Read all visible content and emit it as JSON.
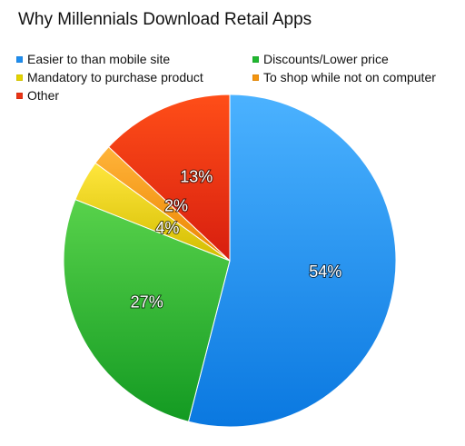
{
  "chart_data": {
    "type": "pie",
    "title": "Why Millennials Download Retail Apps",
    "legend_placement": "top",
    "slices": [
      {
        "label": "Easier to than mobile site",
        "value": 54,
        "display": "54%",
        "color": "#1e8ef0"
      },
      {
        "label": "Discounts/Lower price",
        "value": 27,
        "display": "27%",
        "color": "#20b830"
      },
      {
        "label": "Mandatory to purchase product",
        "value": 4,
        "display": "4%",
        "color": "#e4d400"
      },
      {
        "label": "To shop while not on computer",
        "value": 2,
        "display": "2%",
        "color": "#f5950e"
      },
      {
        "label": "Other",
        "value": 13,
        "display": "13%",
        "color": "#ea3415"
      }
    ]
  }
}
